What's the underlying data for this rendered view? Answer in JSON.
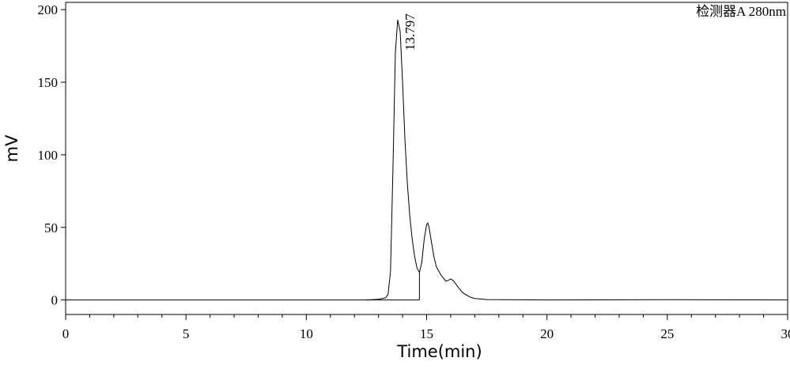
{
  "chart_data": {
    "type": "line",
    "x_label": "Time(min)",
    "y_label": "mV",
    "annotation": "检测器A 280nm",
    "x": [
      0,
      5,
      10,
      12.5,
      13.0,
      13.3,
      13.4,
      13.5,
      13.6,
      13.7,
      13.797,
      13.9,
      14.0,
      14.1,
      14.2,
      14.3,
      14.4,
      14.5,
      14.6,
      14.7,
      14.8,
      14.9,
      15.0,
      15.05,
      15.1,
      15.2,
      15.3,
      15.4,
      15.6,
      15.8,
      15.9,
      16.0,
      16.1,
      16.3,
      16.5,
      16.8,
      17.0,
      17.5,
      20,
      25,
      30
    ],
    "values": [
      0,
      0,
      0,
      0,
      0.5,
      1.5,
      4,
      20,
      90,
      170,
      193,
      185,
      150,
      110,
      80,
      58,
      42,
      30,
      22,
      19,
      26,
      42,
      52,
      53,
      50,
      40,
      30,
      23,
      17,
      13,
      13.5,
      14.5,
      13.5,
      9,
      5,
      2,
      1,
      0.3,
      0,
      0.2,
      0
    ],
    "color": "#000000",
    "peak_labels": [
      13.797
    ],
    "drop_line_x": 14.7,
    "xlim": [
      0,
      30
    ],
    "xticks": [
      0,
      5,
      10,
      15,
      20,
      25,
      30
    ],
    "ylim": [
      -10,
      205
    ],
    "yticks": [
      0,
      50,
      100,
      150,
      200
    ]
  }
}
